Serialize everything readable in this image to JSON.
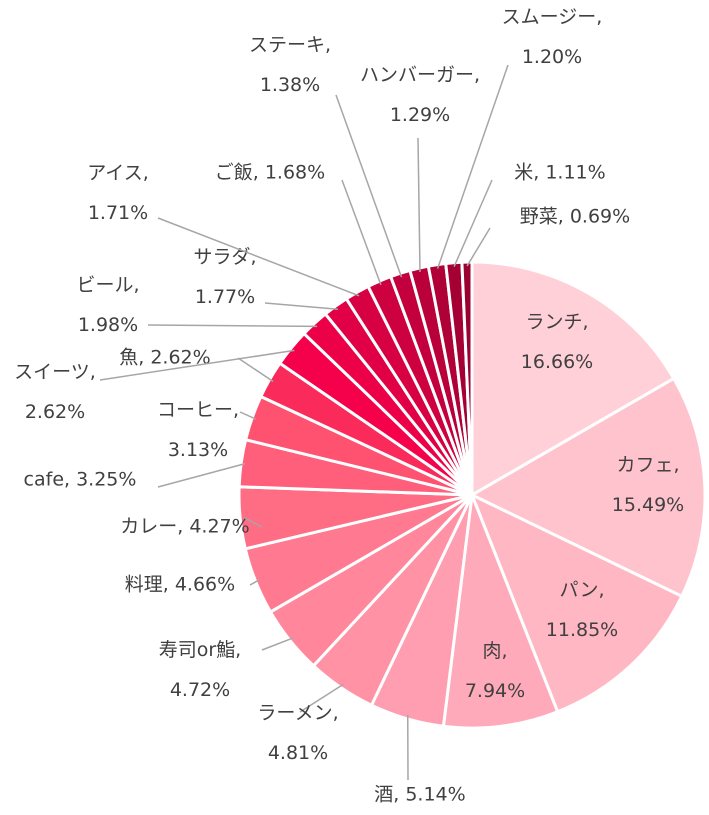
{
  "chart_data": {
    "type": "pie",
    "values": [
      16.66,
      15.49,
      11.85,
      7.94,
      5.14,
      4.81,
      4.72,
      4.66,
      4.27,
      3.25,
      3.13,
      2.62,
      2.62,
      1.98,
      1.77,
      1.71,
      1.68,
      1.38,
      1.29,
      1.2,
      1.11,
      0.69
    ],
    "value_labels": [
      "ランチ, 16.66%",
      "カフェ, 15.49%",
      "パン, 11.85%",
      "肉, 7.94%",
      "酒, 5.14%",
      "ラーメン, 4.81%",
      "寿司or鮨, 4.72%",
      "料理, 4.66%",
      "カレー, 4.27%",
      "cafe, 3.25%",
      "コーヒー, 3.13%",
      "魚, 2.62%",
      "スイーツ, 2.62%",
      "ビール, 1.98%",
      "サラダ, 1.77%",
      "アイス, 1.71%",
      "ご飯, 1.68%",
      "ステーキ, 1.38%",
      "ハンバーガー, 1.29%",
      "スムージー, 1.20%",
      "米, 1.11%",
      "野菜, 0.69%"
    ],
    "colors": [
      "#ffd0d8",
      "#ffc3ce",
      "#ffb7c4",
      "#ffaabb",
      "#ff9eb0",
      "#ff92a5",
      "#ff869b",
      "#ff7a90",
      "#ff6d85",
      "#ff5f7b",
      "#ff5170",
      "#fa2a5a",
      "#f5004b",
      "#ec0048",
      "#e10045",
      "#d70042",
      "#cd0040",
      "#c3003d",
      "#b9003a",
      "#af0037",
      "#a50034",
      "#9a0030"
    ]
  }
}
